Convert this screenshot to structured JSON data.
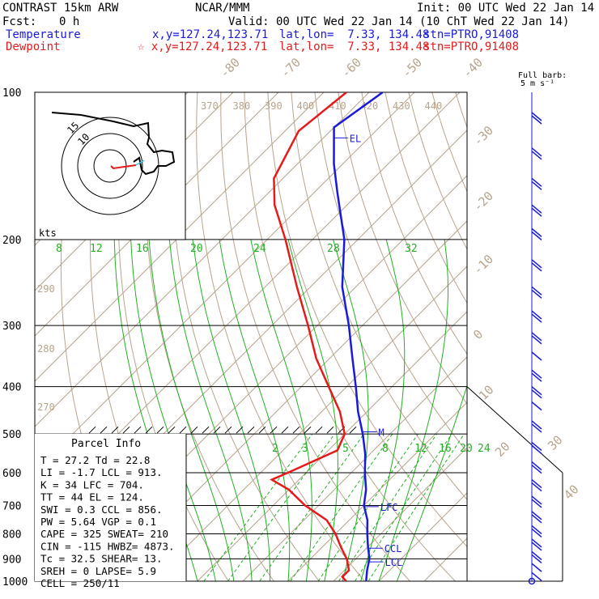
{
  "header": {
    "model": "CONTRAST 15km ARW",
    "center": "NCAR/MMM",
    "init": "Init: 00 UTC Wed 22 Jan 14",
    "fcst_label": "Fcst:",
    "fcst_value": "0 h",
    "valid": "Valid: 00 UTC Wed 22 Jan 14 (10 ChT Wed 22 Jan 14)",
    "temp_label": "Temperature",
    "temp_xy": "x,y=127.24,123.71",
    "temp_latlon": "lat,lon=  7.33, 134.48",
    "temp_stn": "stn=PTRO,91408",
    "dew_label": "Dewpoint",
    "dew_xy": "☆ x,y=127.24,123.71",
    "dew_latlon": "lat,lon=  7.33, 134.48",
    "dew_stn": "stn=PTRO,91408"
  },
  "colors": {
    "temp": "#1a1adc",
    "dew": "#e61a1a",
    "isotherm": "#b8a48c",
    "mixing": "#22b022",
    "isobar": "#000000"
  },
  "parcel_info": {
    "title": "Parcel Info",
    "rows": [
      "T   =   27.2  Td =  22.8",
      "LI  =   -1.7  LCL =  913.",
      "K   =     34  LFC =  704.",
      "TT  =     44  EL  =  124.",
      "SWI =    0.3  CCL =  856.",
      "PW  =   5.64  VGP =   0.1",
      "CAPE =   325  SWEAT=  210",
      "CIN  =  -115  HWBZ= 4873.",
      "Tc  =   32.5  SHEAR=   13.",
      "SREH =     0  LAPSE=  5.9",
      "CELL = 250/11"
    ]
  },
  "barbs_label": {
    "line1": "Full barb:",
    "line2": "5 m s⁻¹"
  },
  "hodograph_label": "kts",
  "hodograph_rings": [
    "15",
    "10"
  ],
  "chart_data": {
    "type": "skew-t",
    "pressure_levels": [
      100,
      200,
      300,
      400,
      500,
      600,
      700,
      800,
      900,
      1000
    ],
    "isotherm_labels": [
      "-80",
      "-70",
      "-60",
      "-50",
      "-40",
      "-30",
      "-20",
      "-10",
      "0",
      "10",
      "20",
      "30",
      "40"
    ],
    "theta_labels": [
      "370",
      "380",
      "390",
      "400",
      "410",
      "420",
      "430",
      "440"
    ],
    "theta_left_labels": [
      "290",
      "280",
      "270"
    ],
    "mixing_ratio_labels_upper": [
      "8",
      "12",
      "16",
      "20",
      "24",
      "28",
      "32"
    ],
    "mixing_ratio_labels_lower": [
      "2",
      "3",
      "5",
      "8",
      "12",
      "16",
      "20",
      "24"
    ],
    "levels_marked": [
      {
        "label": "EL",
        "p": 124
      },
      {
        "label": "M",
        "p": 495
      },
      {
        "label": "LFC",
        "p": 704
      },
      {
        "label": "CCL",
        "p": 856
      },
      {
        "label": "LCL",
        "p": 913
      }
    ],
    "series": [
      {
        "name": "Temperature",
        "color": "#1a1adc",
        "points": [
          [
            100,
            -77
          ],
          [
            118,
            -80
          ],
          [
            140,
            -72
          ],
          [
            160,
            -65
          ],
          [
            200,
            -53
          ],
          [
            250,
            -43
          ],
          [
            300,
            -33
          ],
          [
            350,
            -25
          ],
          [
            400,
            -18
          ],
          [
            450,
            -12
          ],
          [
            500,
            -6
          ],
          [
            550,
            -1
          ],
          [
            600,
            3
          ],
          [
            650,
            7
          ],
          [
            700,
            10
          ],
          [
            750,
            14
          ],
          [
            800,
            17
          ],
          [
            850,
            20
          ],
          [
            900,
            23
          ],
          [
            950,
            25
          ],
          [
            1000,
            27.2
          ]
        ]
      },
      {
        "name": "Dewpoint",
        "color": "#e61a1a",
        "points": [
          [
            100,
            -85
          ],
          [
            120,
            -87
          ],
          [
            150,
            -82
          ],
          [
            170,
            -76
          ],
          [
            200,
            -66
          ],
          [
            250,
            -53
          ],
          [
            300,
            -42
          ],
          [
            350,
            -33
          ],
          [
            400,
            -24
          ],
          [
            450,
            -16
          ],
          [
            500,
            -10
          ],
          [
            540,
            -8
          ],
          [
            600,
            -14
          ],
          [
            620,
            -16
          ],
          [
            650,
            -10
          ],
          [
            700,
            -3
          ],
          [
            750,
            5
          ],
          [
            800,
            10
          ],
          [
            850,
            14
          ],
          [
            900,
            18
          ],
          [
            950,
            21
          ],
          [
            980,
            21
          ],
          [
            1000,
            22.8
          ]
        ]
      }
    ],
    "wind_barbs_m_s": [
      {
        "p": 110,
        "spd": 8
      },
      {
        "p": 130,
        "spd": 9
      },
      {
        "p": 150,
        "spd": 10
      },
      {
        "p": 170,
        "spd": 10
      },
      {
        "p": 190,
        "spd": 9
      },
      {
        "p": 220,
        "spd": 8
      },
      {
        "p": 250,
        "spd": 9
      },
      {
        "p": 280,
        "spd": 10
      },
      {
        "p": 310,
        "spd": 9
      },
      {
        "p": 340,
        "spd": 7
      },
      {
        "p": 370,
        "spd": 8
      },
      {
        "p": 400,
        "spd": 8
      },
      {
        "p": 430,
        "spd": 7
      },
      {
        "p": 470,
        "spd": 9
      },
      {
        "p": 520,
        "spd": 8
      },
      {
        "p": 570,
        "spd": 11
      },
      {
        "p": 620,
        "spd": 12
      },
      {
        "p": 670,
        "spd": 12
      },
      {
        "p": 720,
        "spd": 11
      },
      {
        "p": 770,
        "spd": 9
      },
      {
        "p": 820,
        "spd": 8
      },
      {
        "p": 870,
        "spd": 8
      },
      {
        "p": 920,
        "spd": 7
      },
      {
        "p": 960,
        "spd": 6
      }
    ]
  }
}
